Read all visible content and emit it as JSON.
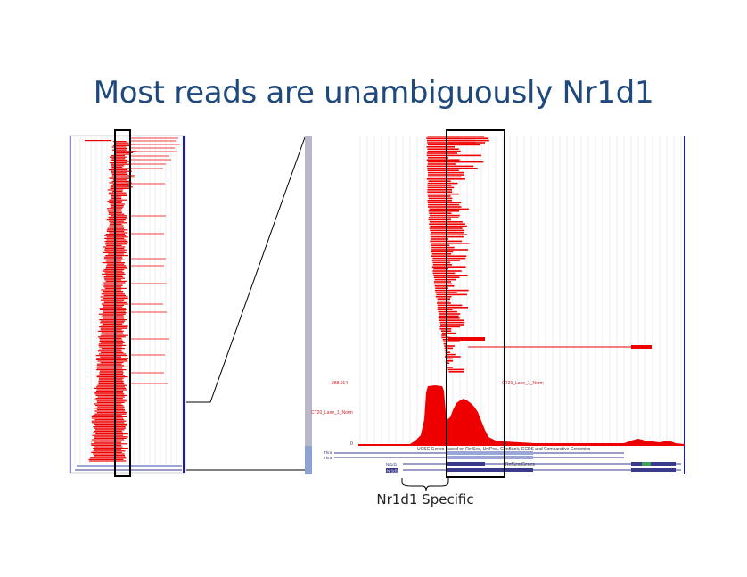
{
  "slide": {
    "title": "Most reads are unambiguously Nr1d1",
    "annotation": "Nr1d1 Specific"
  },
  "colors": {
    "title": "#1f497d",
    "reads": "#ee0000",
    "track_frame": "#1a1ab0",
    "gene_model": "#3a3a8c",
    "gene_exon": "#9aa6d8",
    "highlight_box": "#000000",
    "scrollbar": "#b8b8c8"
  },
  "genome_browser": {
    "track_labels": {
      "coverage_track": "CT20_Lane_1_Norm",
      "coverage_scale_max": "288.914",
      "coverage_scale_min": "0",
      "annotation_track": "UCSC Genes Based on RefSeq, UniProt, GenBank, CCDS and Comparative Genomics",
      "refseq_track": "RefSeq Genes",
      "gene_name": "Nr1d1",
      "gene_neighbor": "Thra"
    }
  }
}
